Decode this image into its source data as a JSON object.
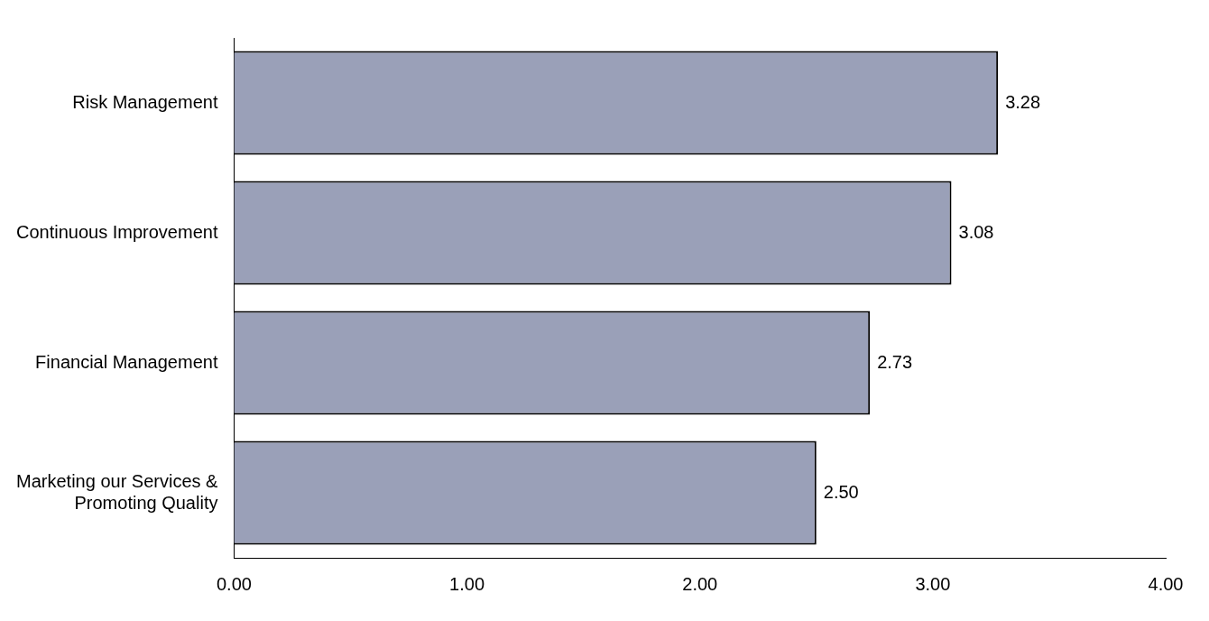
{
  "chart_data": {
    "type": "bar",
    "orientation": "horizontal",
    "categories": [
      "Risk Management",
      "Continuous Improvement",
      "Financial Management",
      "Marketing our Services & Promoting Quality"
    ],
    "values": [
      3.28,
      3.08,
      2.73,
      2.5
    ],
    "value_labels": [
      "3.28",
      "3.08",
      "2.73",
      "2.50"
    ],
    "color": "#9aa0b8",
    "xlim": [
      0,
      4
    ],
    "xticks": [
      {
        "value": 0,
        "label": "0.00"
      },
      {
        "value": 1,
        "label": "1.00"
      },
      {
        "value": 2,
        "label": "2.00"
      },
      {
        "value": 3,
        "label": "3.00"
      },
      {
        "value": 4,
        "label": "4.00"
      }
    ],
    "grid": false,
    "legend": false
  }
}
